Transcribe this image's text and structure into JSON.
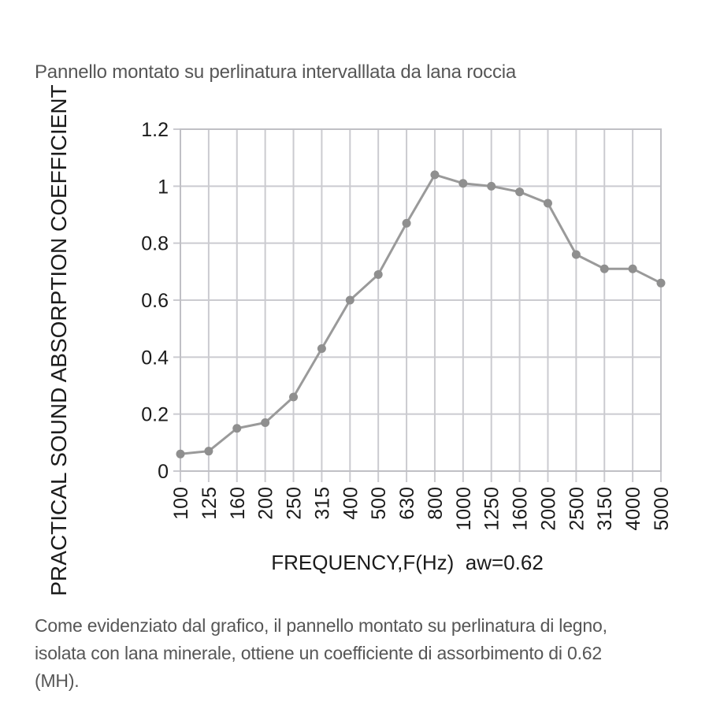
{
  "page": {
    "title": "Pannello montato su perlinatura intervalllata da lana roccia",
    "caption": "Come evidenziato dal grafico, il pannello montato su perlinatura di legno,\nisolata con lana minerale, ottiene un coefficiente di assorbimento di 0.62\n(MH)."
  },
  "colors": {
    "background": "#ffffff",
    "line": "#9a9a9a",
    "marker": "#8f8f8f",
    "grid": "#cbcbd0",
    "plot_border": "#c0c0c5",
    "axis_text": "#1b1b1b",
    "body_text": "#565656"
  },
  "chart_data": {
    "type": "line",
    "title": "",
    "xlabel": "FREQUENCY,F(Hz)  aw=0.62",
    "ylabel": "PRACTICAL SOUND ABSORPTION COEFFICIENT",
    "categories": [
      "100",
      "125",
      "160",
      "200",
      "250",
      "315",
      "400",
      "500",
      "630",
      "800",
      "1000",
      "1250",
      "1600",
      "2000",
      "2500",
      "3150",
      "4000",
      "5000"
    ],
    "values": [
      0.06,
      0.07,
      0.15,
      0.17,
      0.26,
      0.43,
      0.6,
      0.69,
      0.87,
      1.04,
      1.01,
      1.0,
      0.98,
      0.94,
      0.76,
      0.71,
      0.71,
      0.66
    ],
    "ylim": [
      0,
      1.2
    ],
    "ytick_step": 0.2,
    "ytick_labels": [
      "0",
      "0.2",
      "0.4",
      "0.6",
      "0.8",
      "1",
      "1.2"
    ],
    "grid": true,
    "legend": false,
    "marker": "circle",
    "aw_label": "aw=0.62"
  }
}
